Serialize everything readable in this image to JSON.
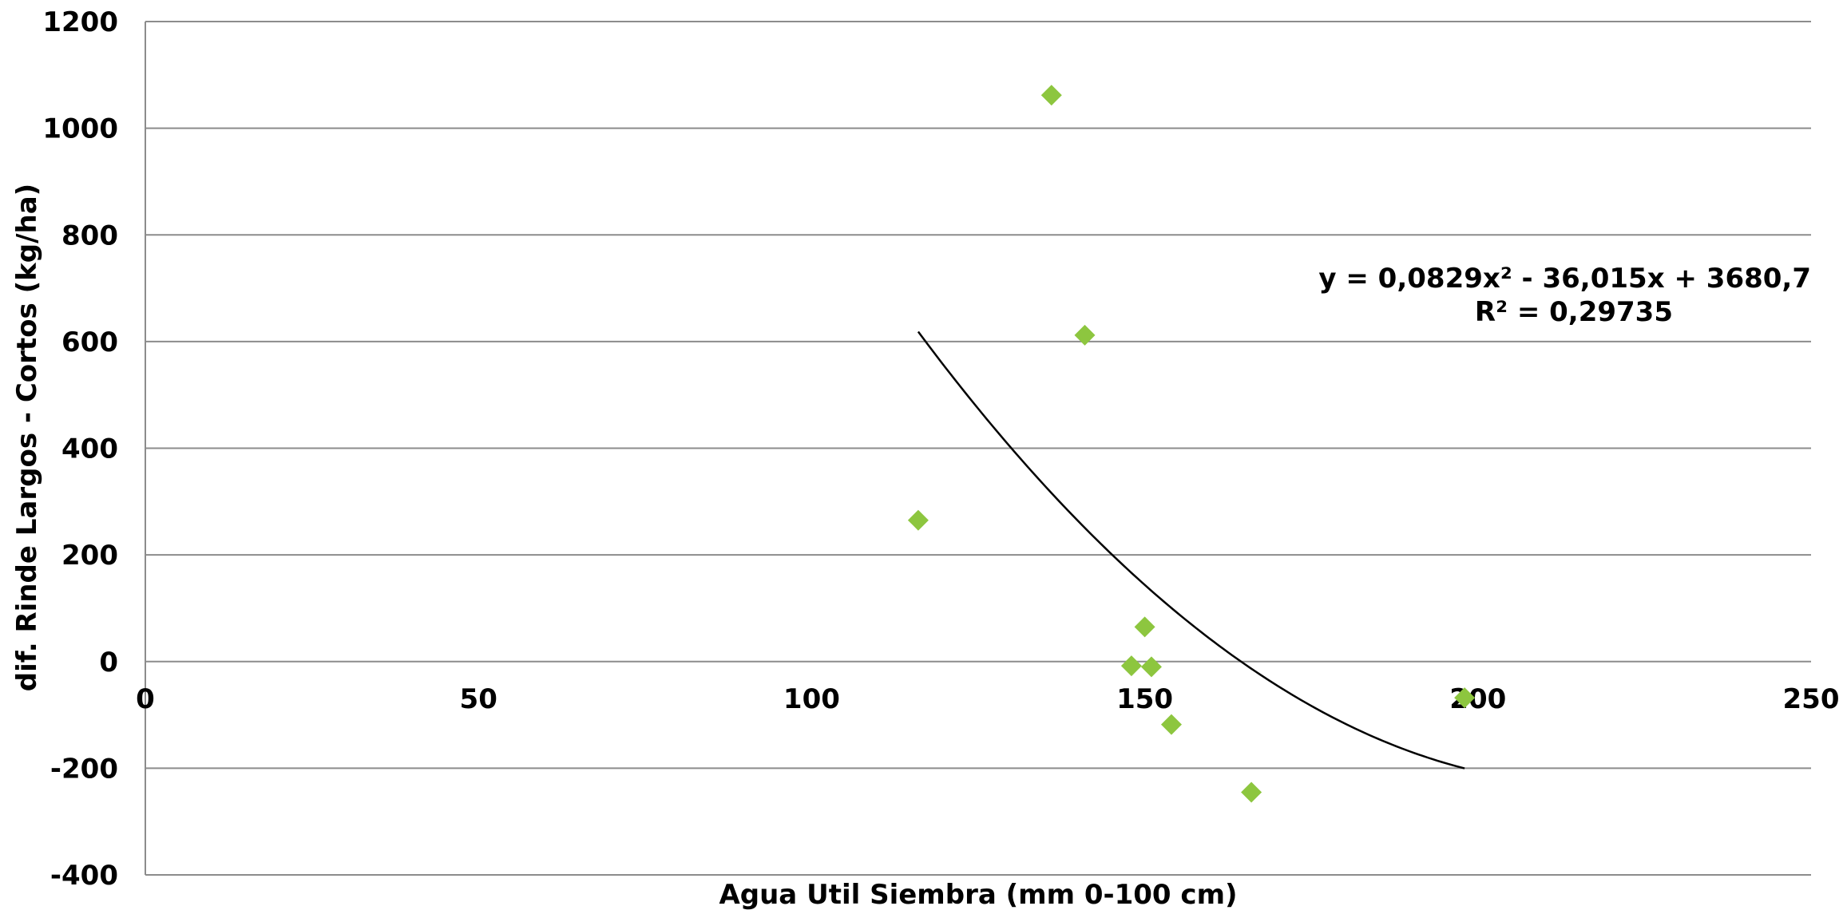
{
  "chart_data": {
    "type": "scatter",
    "title": "",
    "xlabel": "Agua Util Siembra (mm 0-100 cm)",
    "ylabel": "dif. Rinde Largos - Cortos (kg/ha)",
    "xlim": [
      0,
      250
    ],
    "ylim": [
      -400,
      1200
    ],
    "x_ticks": [
      "0",
      "50",
      "100",
      "150",
      "200",
      "250"
    ],
    "y_ticks": [
      "-400",
      "-200",
      "0",
      "200",
      "400",
      "600",
      "800",
      "1000",
      "1200"
    ],
    "grid": "horizontal",
    "marker": "diamond",
    "marker_color": "#8dc63f",
    "series": [
      {
        "points": [
          {
            "x": 116,
            "y": 265
          },
          {
            "x": 136,
            "y": 1062
          },
          {
            "x": 141,
            "y": 612
          },
          {
            "x": 148,
            "y": -8
          },
          {
            "x": 150,
            "y": 65
          },
          {
            "x": 151,
            "y": -10
          },
          {
            "x": 154,
            "y": -118
          },
          {
            "x": 166,
            "y": -245
          },
          {
            "x": 198,
            "y": -68
          }
        ]
      }
    ],
    "trendline": {
      "type": "polynomial",
      "a": 0.0829,
      "b": -36.015,
      "c": 3680.7,
      "x_range": [
        116,
        198
      ],
      "equation_text": "y = 0,0829x² - 36,015x + 3680,7",
      "r2_text": "R² = 0,29735"
    }
  }
}
